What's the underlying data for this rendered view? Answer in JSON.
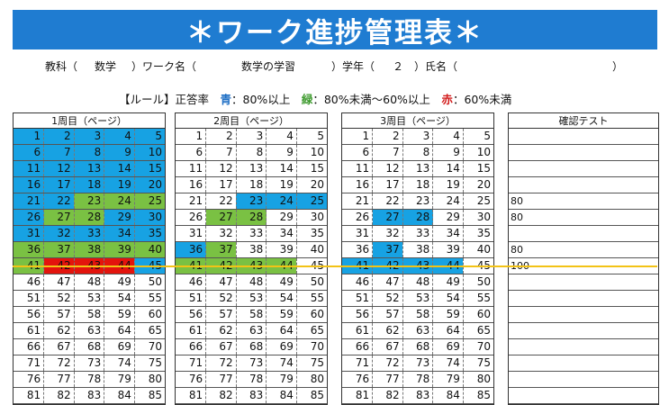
{
  "title": "＊ワーク進捗管理表＊",
  "info": {
    "subject_label": "教科（",
    "subject_value": "数学",
    "subject_close": "）ワーク名（",
    "work_value": "数学の学習",
    "grade_label": "）学年（",
    "grade_value": "２",
    "name_label": "）氏名（",
    "name_close": "）"
  },
  "rule": {
    "prefix": "【ルール】正答率　",
    "blue_word": "青",
    "blue_text": "：80%以上　",
    "green_word": "緑",
    "green_text": "：80%未満～60%以上　",
    "red_word": "赤",
    "red_text": "：60%未満"
  },
  "colors": {
    "blue": "#17a2e3",
    "green": "#7ac143",
    "red": "#e3140d"
  },
  "weeks": [
    {
      "label": "1周目（ページ）",
      "rows": [
        [
          "1",
          "2",
          "3",
          "4",
          "5"
        ],
        [
          "6",
          "7",
          "8",
          "9",
          "10"
        ],
        [
          "11",
          "12",
          "13",
          "14",
          "15"
        ],
        [
          "16",
          "17",
          "18",
          "19",
          "20"
        ],
        [
          "21",
          "22",
          "23",
          "24",
          "25"
        ],
        [
          "26",
          "27",
          "28",
          "29",
          "30"
        ],
        [
          "31",
          "32",
          "33",
          "34",
          "35"
        ],
        [
          "36",
          "37",
          "38",
          "39",
          "40"
        ],
        [
          "41",
          "42",
          "43",
          "44",
          "45"
        ],
        [
          "46",
          "47",
          "48",
          "49",
          "50"
        ],
        [
          "51",
          "52",
          "53",
          "54",
          "55"
        ],
        [
          "56",
          "57",
          "58",
          "59",
          "60"
        ],
        [
          "61",
          "62",
          "63",
          "64",
          "65"
        ],
        [
          "66",
          "67",
          "68",
          "69",
          "70"
        ],
        [
          "71",
          "72",
          "73",
          "74",
          "75"
        ],
        [
          "76",
          "77",
          "78",
          "79",
          "80"
        ],
        [
          "81",
          "82",
          "83",
          "84",
          "85"
        ]
      ],
      "colors": [
        [
          "b",
          "b",
          "b",
          "b",
          "b"
        ],
        [
          "b",
          "b",
          "b",
          "b",
          "b"
        ],
        [
          "b",
          "b",
          "b",
          "b",
          "b"
        ],
        [
          "b",
          "b",
          "b",
          "b",
          "b"
        ],
        [
          "b",
          "b",
          "g",
          "g",
          "g"
        ],
        [
          "b",
          "g",
          "g",
          "b",
          "b"
        ],
        [
          "b",
          "b",
          "b",
          "b",
          "b"
        ],
        [
          "g",
          "g",
          "g",
          "g",
          "g"
        ],
        [
          "g",
          "r",
          "r",
          "r",
          "b"
        ],
        [
          "",
          "",
          "",
          "",
          ""
        ],
        [
          "",
          "",
          "",
          "",
          ""
        ],
        [
          "",
          "",
          "",
          "",
          ""
        ],
        [
          "",
          "",
          "",
          "",
          ""
        ],
        [
          "",
          "",
          "",
          "",
          ""
        ],
        [
          "",
          "",
          "",
          "",
          ""
        ],
        [
          "",
          "",
          "",
          "",
          ""
        ],
        [
          "",
          "",
          "",
          "",
          ""
        ]
      ]
    },
    {
      "label": "2周目（ページ）",
      "rows": [
        [
          "1",
          "2",
          "3",
          "4",
          "5"
        ],
        [
          "6",
          "7",
          "8",
          "9",
          "10"
        ],
        [
          "11",
          "12",
          "13",
          "14",
          "15"
        ],
        [
          "16",
          "17",
          "18",
          "19",
          "20"
        ],
        [
          "21",
          "22",
          "23",
          "24",
          "25"
        ],
        [
          "26",
          "27",
          "28",
          "29",
          "30"
        ],
        [
          "31",
          "32",
          "33",
          "34",
          "35"
        ],
        [
          "36",
          "37",
          "38",
          "39",
          "40"
        ],
        [
          "41",
          "42",
          "43",
          "44",
          "45"
        ],
        [
          "46",
          "47",
          "48",
          "49",
          "50"
        ],
        [
          "51",
          "52",
          "53",
          "54",
          "55"
        ],
        [
          "56",
          "57",
          "58",
          "59",
          "60"
        ],
        [
          "61",
          "62",
          "63",
          "64",
          "65"
        ],
        [
          "66",
          "67",
          "68",
          "69",
          "70"
        ],
        [
          "71",
          "72",
          "73",
          "74",
          "75"
        ],
        [
          "76",
          "77",
          "78",
          "79",
          "80"
        ],
        [
          "81",
          "82",
          "83",
          "84",
          "85"
        ]
      ],
      "colors": [
        [
          "",
          "",
          "",
          "",
          ""
        ],
        [
          "",
          "",
          "",
          "",
          ""
        ],
        [
          "",
          "",
          "",
          "",
          ""
        ],
        [
          "",
          "",
          "",
          "",
          ""
        ],
        [
          "",
          "",
          "b",
          "b",
          "b"
        ],
        [
          "",
          "g",
          "g",
          "",
          ""
        ],
        [
          "",
          "",
          "",
          "",
          ""
        ],
        [
          "b",
          "g",
          "",
          "",
          ""
        ],
        [
          "g",
          "g",
          "g",
          "g",
          ""
        ],
        [
          "",
          "",
          "",
          "",
          ""
        ],
        [
          "",
          "",
          "",
          "",
          ""
        ],
        [
          "",
          "",
          "",
          "",
          ""
        ],
        [
          "",
          "",
          "",
          "",
          ""
        ],
        [
          "",
          "",
          "",
          "",
          ""
        ],
        [
          "",
          "",
          "",
          "",
          ""
        ],
        [
          "",
          "",
          "",
          "",
          ""
        ],
        [
          "",
          "",
          "",
          "",
          ""
        ]
      ]
    },
    {
      "label": "3周目（ページ）",
      "rows": [
        [
          "1",
          "2",
          "3",
          "4",
          "5"
        ],
        [
          "6",
          "7",
          "8",
          "9",
          "10"
        ],
        [
          "11",
          "12",
          "13",
          "14",
          "15"
        ],
        [
          "16",
          "17",
          "18",
          "19",
          "20"
        ],
        [
          "21",
          "22",
          "23",
          "24",
          "25"
        ],
        [
          "26",
          "27",
          "28",
          "29",
          "30"
        ],
        [
          "31",
          "32",
          "33",
          "34",
          "35"
        ],
        [
          "36",
          "37",
          "38",
          "39",
          "40"
        ],
        [
          "41",
          "42",
          "43",
          "44",
          "45"
        ],
        [
          "46",
          "47",
          "48",
          "49",
          "50"
        ],
        [
          "51",
          "52",
          "53",
          "54",
          "55"
        ],
        [
          "56",
          "57",
          "58",
          "59",
          "60"
        ],
        [
          "61",
          "62",
          "63",
          "64",
          "65"
        ],
        [
          "66",
          "67",
          "68",
          "69",
          "70"
        ],
        [
          "71",
          "72",
          "73",
          "74",
          "75"
        ],
        [
          "76",
          "77",
          "78",
          "79",
          "80"
        ],
        [
          "81",
          "82",
          "83",
          "84",
          "85"
        ]
      ],
      "colors": [
        [
          "",
          "",
          "",
          "",
          ""
        ],
        [
          "",
          "",
          "",
          "",
          ""
        ],
        [
          "",
          "",
          "",
          "",
          ""
        ],
        [
          "",
          "",
          "",
          "",
          ""
        ],
        [
          "",
          "",
          "",
          "",
          ""
        ],
        [
          "",
          "b",
          "b",
          "",
          ""
        ],
        [
          "",
          "",
          "",
          "",
          ""
        ],
        [
          "",
          "b",
          "",
          "",
          ""
        ],
        [
          "b",
          "b",
          "b",
          "b",
          ""
        ],
        [
          "",
          "",
          "",
          "",
          ""
        ],
        [
          "",
          "",
          "",
          "",
          ""
        ],
        [
          "",
          "",
          "",
          "",
          ""
        ],
        [
          "",
          "",
          "",
          "",
          ""
        ],
        [
          "",
          "",
          "",
          "",
          ""
        ],
        [
          "",
          "",
          "",
          "",
          ""
        ],
        [
          "",
          "",
          "",
          "",
          ""
        ],
        [
          "",
          "",
          "",
          "",
          ""
        ]
      ]
    }
  ],
  "test": {
    "label": "確認テスト",
    "rows": [
      "",
      "",
      "",
      "",
      "80",
      "80",
      "",
      "80",
      "100",
      "",
      "",
      "",
      "",
      "",
      "",
      "",
      ""
    ]
  }
}
